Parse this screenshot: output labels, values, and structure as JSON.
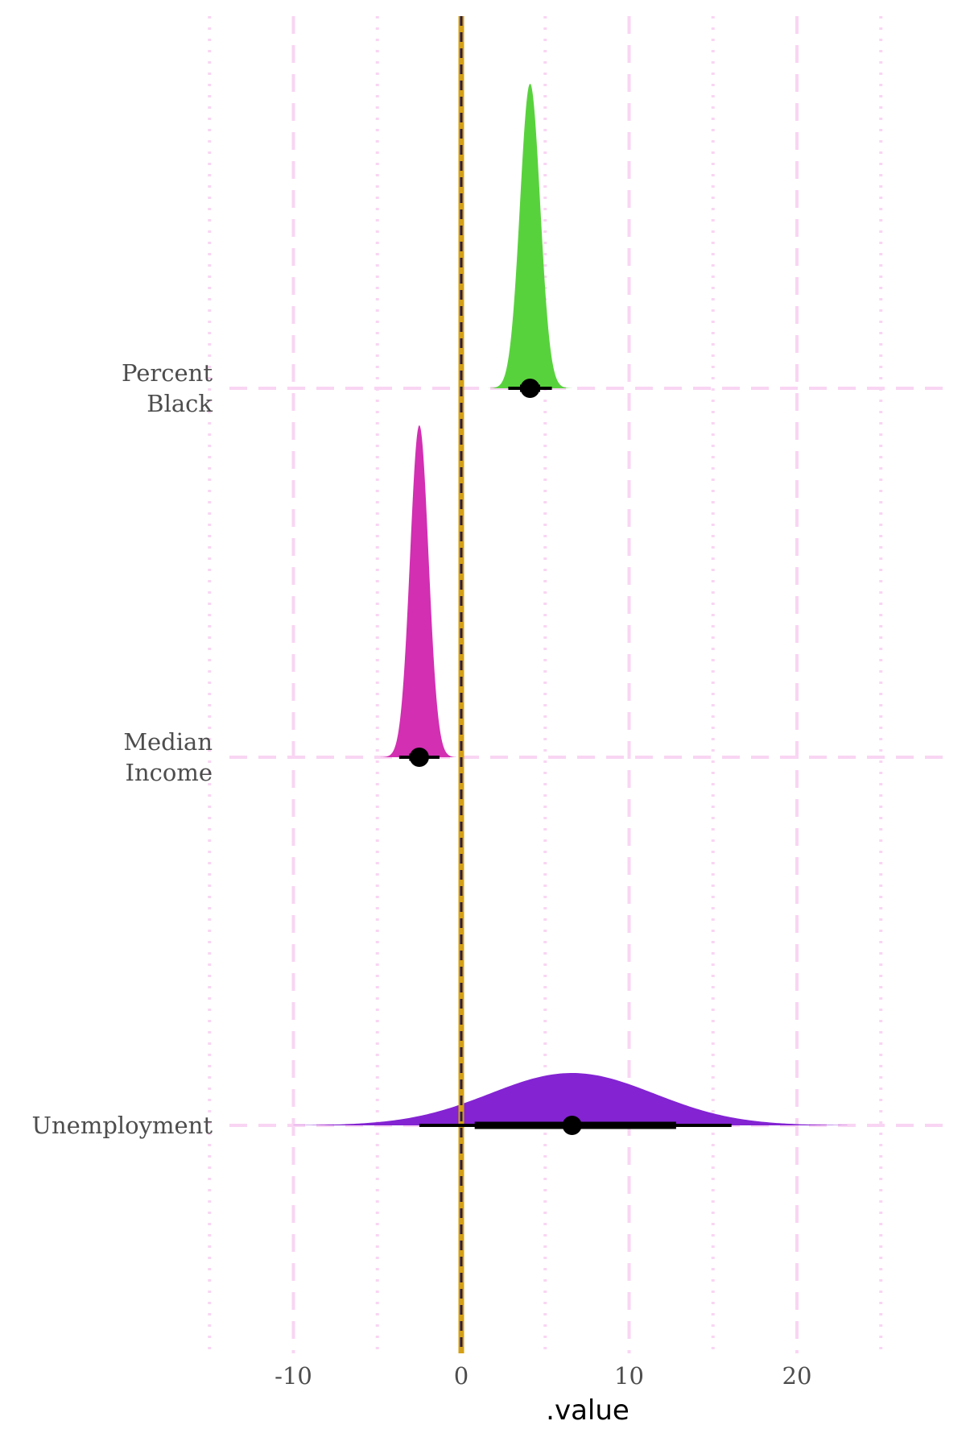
{
  "chart_data": {
    "type": "halfeye",
    "title": "",
    "xlabel": ".value",
    "ylabel": "",
    "xlim": [
      -15,
      29
    ],
    "x_ticks": [
      -10,
      0,
      10,
      20
    ],
    "x_tick_labels": [
      "-10",
      "0",
      "10",
      "20"
    ],
    "grid": {
      "major": "dashed",
      "minor": "dotted",
      "color": "#f9d5f3"
    },
    "reference_line": {
      "x": 0,
      "colors": [
        "#d4a017",
        "#2b1d4e"
      ]
    },
    "categories": [
      "Unemployment",
      "Median Income",
      "Percent Black"
    ],
    "category_labels": [
      [
        "Unemployment"
      ],
      [
        "Median",
        "Income"
      ],
      [
        "Percent",
        "Black"
      ]
    ],
    "series": [
      {
        "category": "Percent Black",
        "color": "#58d23c",
        "median": 4.1,
        "sd": 0.6,
        "interval_66": [
          3.5,
          4.7
        ],
        "interval_95": [
          2.8,
          5.4
        ],
        "density_range": [
          1.5,
          6.8
        ]
      },
      {
        "category": "Median Income",
        "color": "#d22fb2",
        "median": -2.5,
        "sd": 0.55,
        "interval_66": [
          -3.1,
          -2.0
        ],
        "interval_95": [
          -3.7,
          -1.3
        ],
        "density_range": [
          -5.2,
          -0.3
        ]
      },
      {
        "category": "Unemployment",
        "color": "#8323d2",
        "median": 6.6,
        "sd": 4.9,
        "interval_66": [
          0.8,
          12.8
        ],
        "interval_95": [
          -2.5,
          16.1
        ],
        "density_range": [
          -10,
          23
        ]
      }
    ]
  }
}
